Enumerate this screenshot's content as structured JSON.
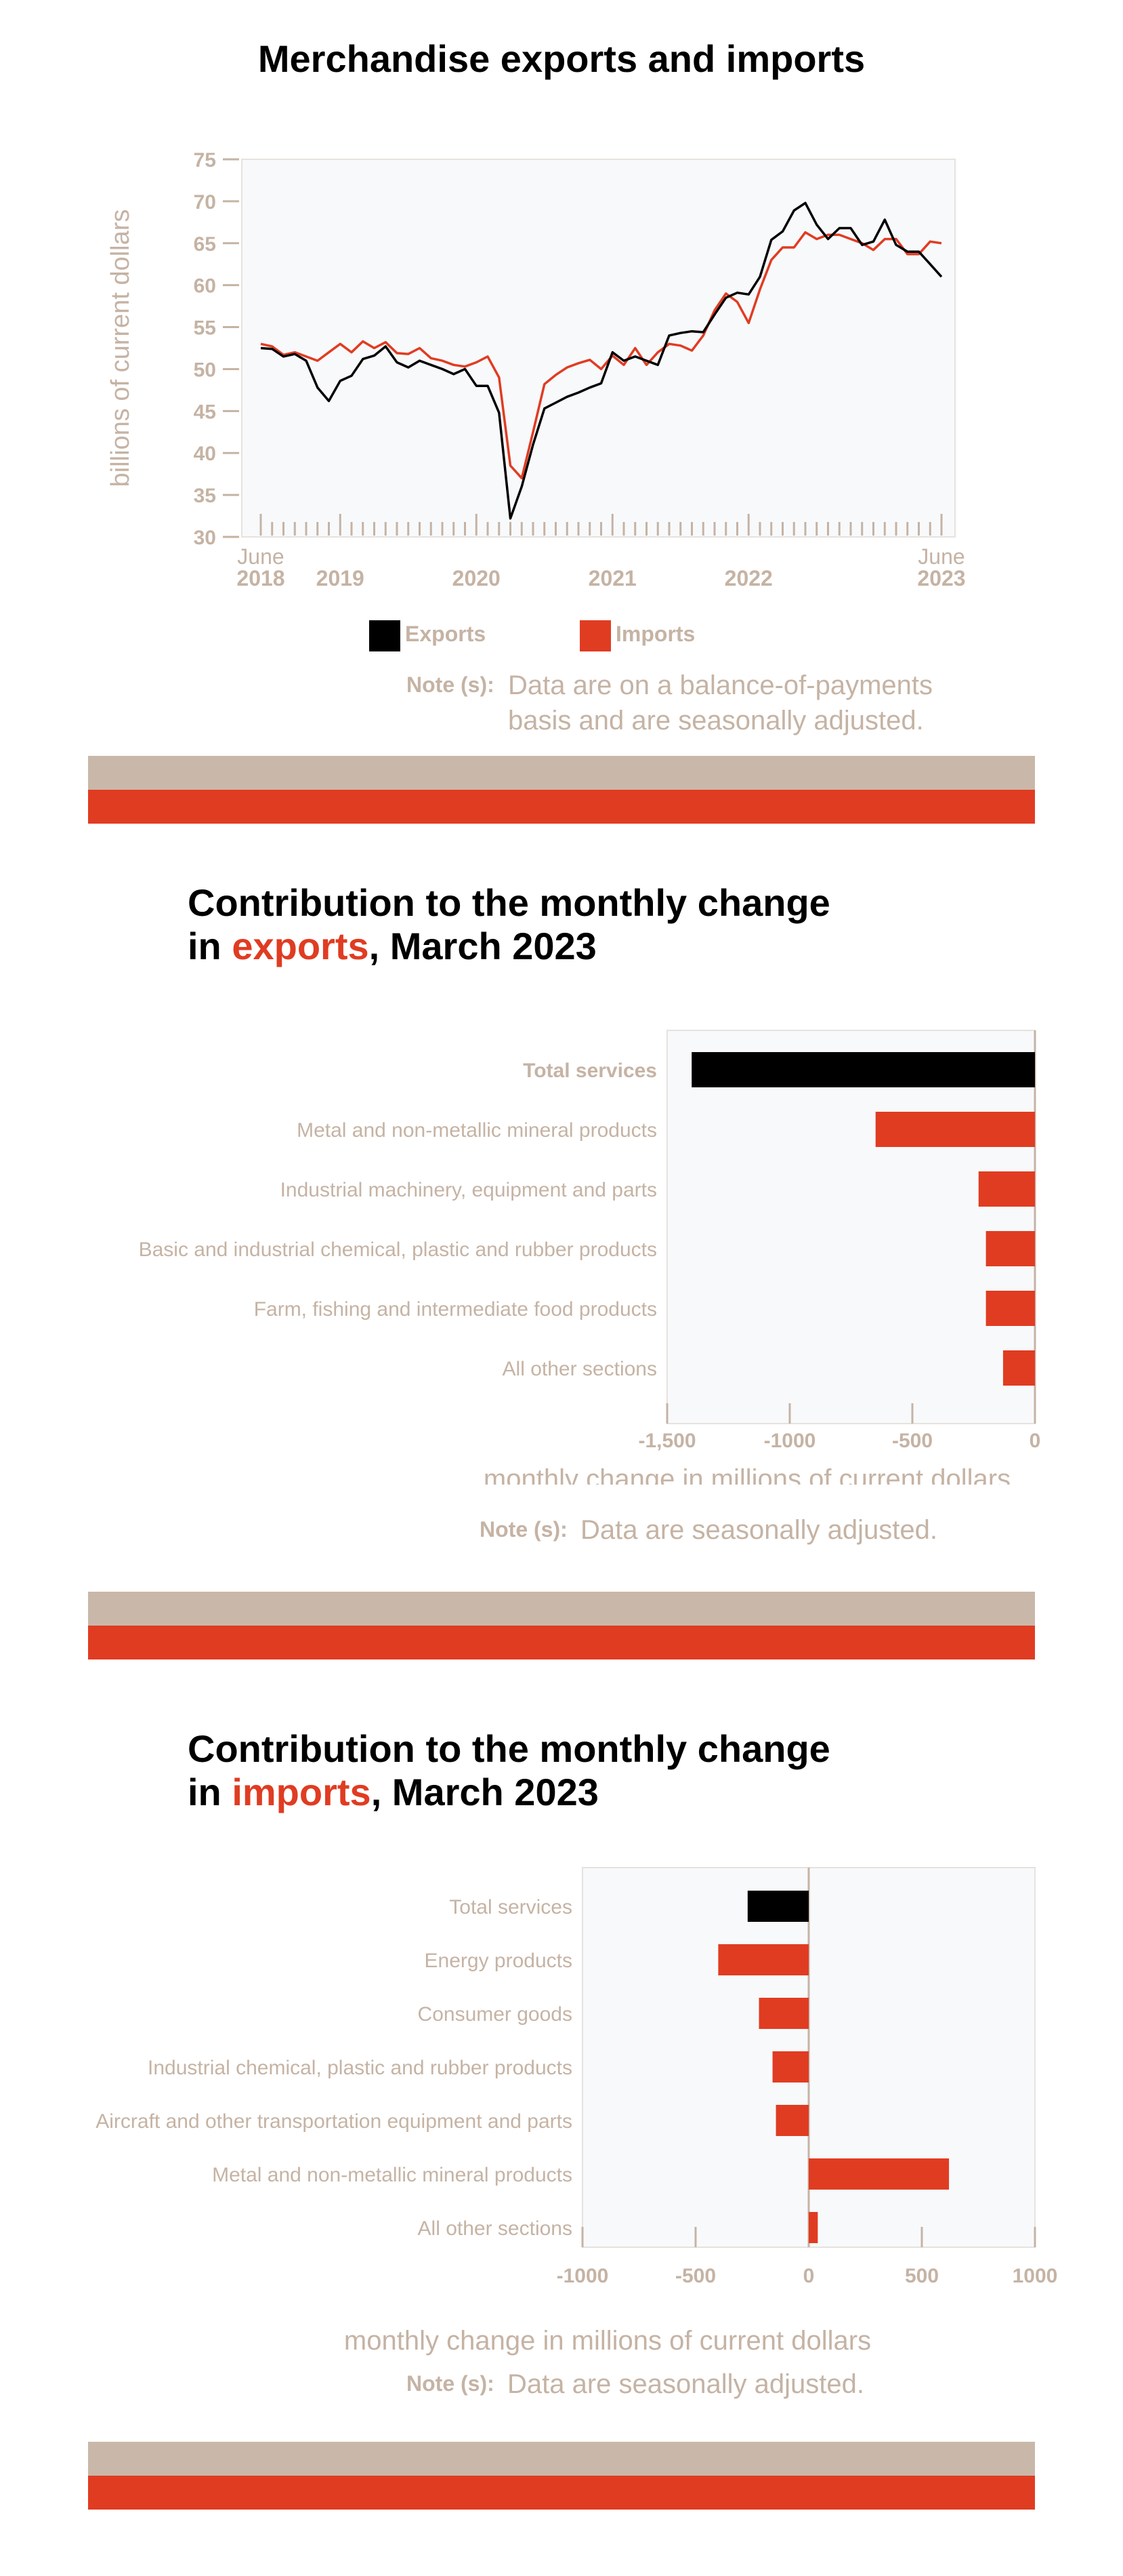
{
  "section1": {
    "title": "Merchandise exports and imports",
    "legend": [
      {
        "label": "Exports",
        "color": "#000000"
      },
      {
        "label": "Imports",
        "color": "#e03c22"
      }
    ],
    "note_label": "Note (s):",
    "note_line1": "Data are on a balance-of-payments",
    "note_line2": "basis and are seasonally adjusted."
  },
  "section2": {
    "title_line1": "Contribution to the monthly change",
    "title_pre": "in ",
    "title_accent": "exports",
    "title_post": ", March 2023",
    "note_label": "Note (s):",
    "note_text": "Data are seasonally adjusted."
  },
  "section3": {
    "title_line1": "Contribution to the monthly change",
    "title_pre": "in ",
    "title_accent": "imports",
    "title_post": ", March 2023",
    "note_label": "Note (s):",
    "note_text": "Data are seasonally adjusted."
  },
  "chart_data": [
    {
      "type": "line",
      "title": "Merchandise exports and imports",
      "ylabel": "billions of current dollars",
      "xlabel": "",
      "ylim": [
        30,
        75
      ],
      "yticks": [
        30,
        35,
        40,
        45,
        50,
        55,
        60,
        65,
        70,
        75
      ],
      "x_tick_labels": [
        {
          "index": 0,
          "line1": "June",
          "line2": "2018"
        },
        {
          "index": 7,
          "line1": "",
          "line2": "2019"
        },
        {
          "index": 19,
          "line1": "",
          "line2": "2020"
        },
        {
          "index": 31,
          "line1": "",
          "line2": "2021"
        },
        {
          "index": 43,
          "line1": "",
          "line2": "2022"
        },
        {
          "index": 60,
          "line1": "June",
          "line2": "2023"
        }
      ],
      "grid": false,
      "legend_position": "bottom",
      "series": [
        {
          "name": "Exports",
          "color": "#000000",
          "values": [
            52.5,
            52.4,
            51.5,
            51.8,
            51.0,
            47.8,
            46.2,
            48.6,
            49.2,
            51.2,
            51.6,
            52.7,
            50.8,
            50.2,
            51.0,
            50.5,
            50.0,
            49.4,
            50.0,
            48.0,
            48.0,
            44.8,
            32.2,
            36.0,
            41.0,
            45.3,
            46.0,
            46.7,
            47.2,
            47.8,
            48.3,
            52.0,
            51.0,
            51.5,
            51.0,
            50.5,
            54.0,
            54.3,
            54.5,
            54.4,
            56.5,
            58.5,
            59.1,
            58.9,
            61.0,
            65.4,
            66.4,
            68.9,
            69.8,
            67.2,
            65.5,
            66.8,
            66.8,
            64.8,
            65.2,
            67.8,
            64.8,
            64.0,
            64.0,
            62.5,
            61.0
          ]
        },
        {
          "name": "Imports",
          "color": "#e03c22",
          "values": [
            53.0,
            52.7,
            51.7,
            52.0,
            51.5,
            51.0,
            52.0,
            53.0,
            52.0,
            53.3,
            52.5,
            53.2,
            51.9,
            51.8,
            52.5,
            51.3,
            51.0,
            50.5,
            50.3,
            50.8,
            51.5,
            49.0,
            38.5,
            37.0,
            42.5,
            48.2,
            49.3,
            50.2,
            50.7,
            51.1,
            50.0,
            51.6,
            50.5,
            52.5,
            50.5,
            52.0,
            53.0,
            52.8,
            52.2,
            54.0,
            57.0,
            59.0,
            58.0,
            55.5,
            59.5,
            63.0,
            64.5,
            64.5,
            66.3,
            65.5,
            66.0,
            66.0,
            65.5,
            65.0,
            64.2,
            65.5,
            65.5,
            63.7,
            63.7,
            65.2,
            65.0
          ]
        }
      ]
    },
    {
      "type": "bar",
      "orientation": "horizontal",
      "title": "Contribution to the monthly change in exports, March 2023",
      "xlabel": "monthly change in millions of current dollars",
      "xlim": [
        -1500,
        0
      ],
      "xticks": [
        -1500,
        -1000,
        -500,
        0
      ],
      "xtick_labels": [
        "-1,500",
        "-1000",
        "-500",
        "0"
      ],
      "categories": [
        "Total services",
        "Metal and non-metallic mineral products",
        "Industrial machinery, equipment and parts",
        "Basic and industrial chemical, plastic and rubber products",
        "Farm, fishing and intermediate food products",
        "All other sections"
      ],
      "values": [
        -1400,
        -650,
        -230,
        -200,
        -200,
        -130
      ],
      "bar_colors": [
        "#000000",
        "#e03c22",
        "#e03c22",
        "#e03c22",
        "#e03c22",
        "#e03c22"
      ],
      "bold_category": "Total services"
    },
    {
      "type": "bar",
      "orientation": "horizontal",
      "title": "Contribution to the monthly change in imports, March 2023",
      "xlabel": "monthly change in millions of current dollars",
      "xlim": [
        -1000,
        1000
      ],
      "xticks": [
        -1000,
        -500,
        0,
        500,
        1000
      ],
      "xtick_labels": [
        "-1000",
        "-500",
        "0",
        "500",
        "1000"
      ],
      "categories": [
        "Total services",
        "Energy products",
        "Consumer goods",
        "Industrial chemical, plastic and rubber products",
        "Aircraft and other transportation equipment and parts",
        "Metal and non-metallic mineral products",
        "All other sections"
      ],
      "values": [
        -270,
        -400,
        -220,
        -160,
        -145,
        620,
        40
      ],
      "bar_colors": [
        "#000000",
        "#e03c22",
        "#e03c22",
        "#e03c22",
        "#e03c22",
        "#e03c22",
        "#e03c22"
      ]
    }
  ]
}
